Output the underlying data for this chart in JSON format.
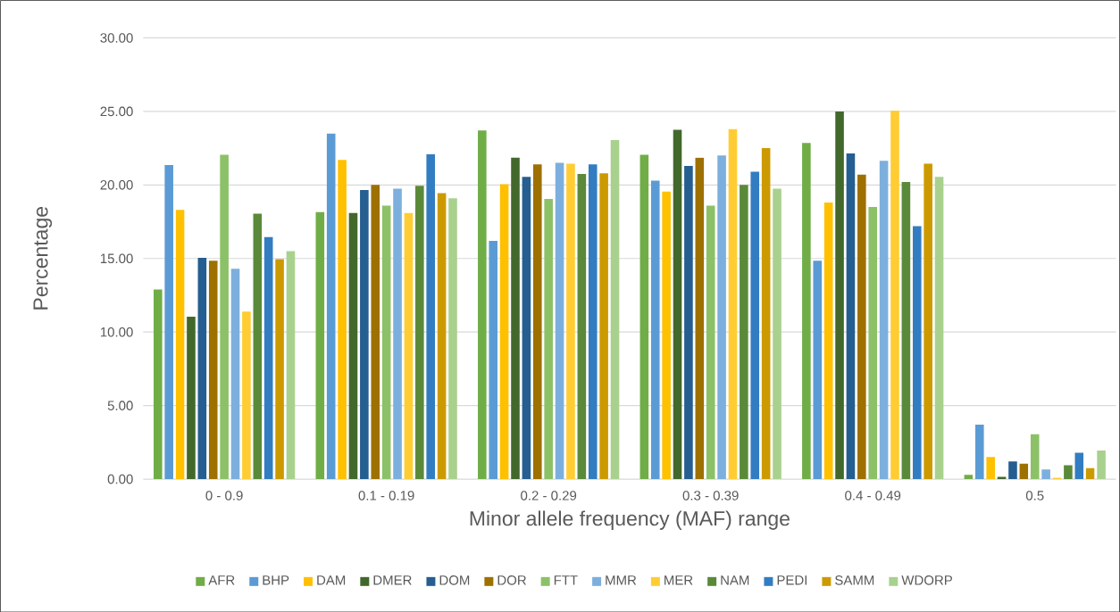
{
  "chart_data": {
    "type": "bar",
    "xlabel": "Minor allele frequency (MAF) range",
    "ylabel": "Percentage",
    "categories": [
      "0 - 0.9",
      "0.1 - 0.19",
      "0.2 - 0.29",
      "0.3 - 0.39",
      "0.4 - 0.49",
      "0.5"
    ],
    "ylim": [
      0,
      30
    ],
    "yticks": [
      {
        "value": 0,
        "label": "0.00"
      },
      {
        "value": 5,
        "label": "5.00"
      },
      {
        "value": 10,
        "label": "10.00"
      },
      {
        "value": 15,
        "label": "15.00"
      },
      {
        "value": 20,
        "label": "20.00"
      },
      {
        "value": 25,
        "label": "25.00"
      },
      {
        "value": 30,
        "label": "30.00"
      }
    ],
    "grid": "y",
    "legend": "bottom",
    "series": [
      {
        "name": "AFR",
        "color": "#70ad47",
        "values": [
          12.9,
          18.15,
          23.7,
          22.05,
          22.85,
          0.3
        ]
      },
      {
        "name": "BHP",
        "color": "#5b9bd5",
        "values": [
          21.35,
          23.5,
          16.2,
          20.3,
          14.85,
          3.7
        ]
      },
      {
        "name": "DAM",
        "color": "#ffc000",
        "values": [
          18.3,
          21.7,
          20.05,
          19.55,
          18.8,
          1.5
        ]
      },
      {
        "name": "DMER",
        "color": "#43682b",
        "values": [
          11.05,
          18.1,
          21.85,
          23.75,
          25.0,
          0.15
        ]
      },
      {
        "name": "DOM",
        "color": "#255e91",
        "values": [
          15.05,
          19.65,
          20.55,
          21.3,
          22.15,
          1.2
        ]
      },
      {
        "name": "DOR",
        "color": "#9e7000",
        "values": [
          14.85,
          20.0,
          21.4,
          21.85,
          20.7,
          1.05
        ]
      },
      {
        "name": "FTT",
        "color": "#8cc168",
        "values": [
          22.05,
          18.6,
          19.05,
          18.6,
          18.5,
          3.05
        ]
      },
      {
        "name": "MMR",
        "color": "#7cafdd",
        "values": [
          14.3,
          19.75,
          21.5,
          22.0,
          21.65,
          0.65
        ]
      },
      {
        "name": "MER",
        "color": "#ffcd33",
        "values": [
          11.4,
          18.1,
          21.45,
          23.8,
          25.05,
          0.1
        ]
      },
      {
        "name": "NAM",
        "color": "#5a8a39",
        "values": [
          18.05,
          19.95,
          20.75,
          20.0,
          20.2,
          0.95
        ]
      },
      {
        "name": "PEDI",
        "color": "#327dc2",
        "values": [
          16.45,
          22.1,
          21.4,
          20.9,
          17.2,
          1.8
        ]
      },
      {
        "name": "SAMM",
        "color": "#cc9a00",
        "values": [
          14.95,
          19.45,
          20.8,
          22.5,
          21.45,
          0.75
        ]
      },
      {
        "name": "WDORP",
        "color": "#a9d18e",
        "values": [
          15.5,
          19.1,
          23.05,
          19.75,
          20.55,
          1.95
        ]
      }
    ]
  }
}
